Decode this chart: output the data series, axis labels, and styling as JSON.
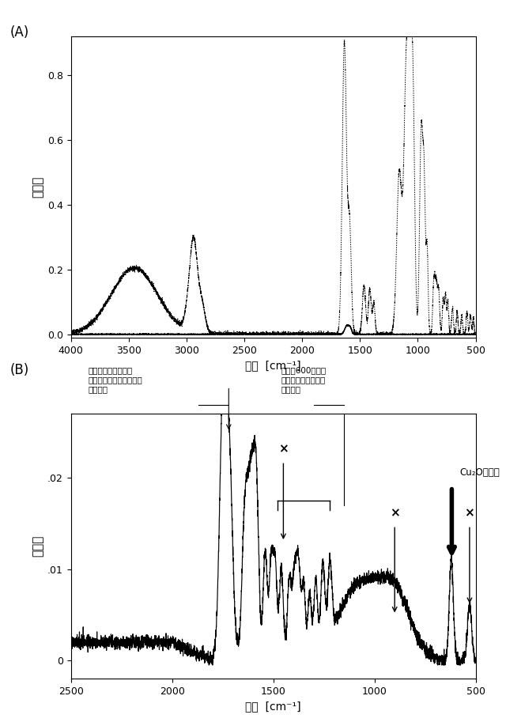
{
  "panel_A": {
    "label": "(A)",
    "xlabel": "波数  [cm⁻¹]",
    "ylabel": "吸光度",
    "xlim": [
      4000,
      500
    ],
    "ylim": [
      -0.01,
      0.92
    ],
    "yticks": [
      0.0,
      0.2,
      0.4,
      0.6,
      0.8
    ],
    "xticks": [
      4000,
      3500,
      3000,
      2500,
      2000,
      1500,
      1000,
      500
    ]
  },
  "panel_B": {
    "label": "(B)",
    "xlabel": "波数  [cm⁻¹]",
    "ylabel": "吸光度",
    "xlim": [
      2500,
      500
    ],
    "ylim": [
      -0.002,
      0.027
    ],
    "yticks": [
      0.0,
      0.01,
      0.02
    ],
    "yticklabels": [
      "0",
      ".01",
      ".02"
    ],
    "xticks": [
      2500,
      2000,
      1500,
      1000,
      500
    ]
  },
  "annot_left_text": "本発明分散液の製造\nを阻害する付加的生成物\nのピーク",
  "annot_right_text": "質量斐60以下の\n炭素水素酸素化合物\nのピーク",
  "cu2o_text": "Cu₂Oピーク"
}
